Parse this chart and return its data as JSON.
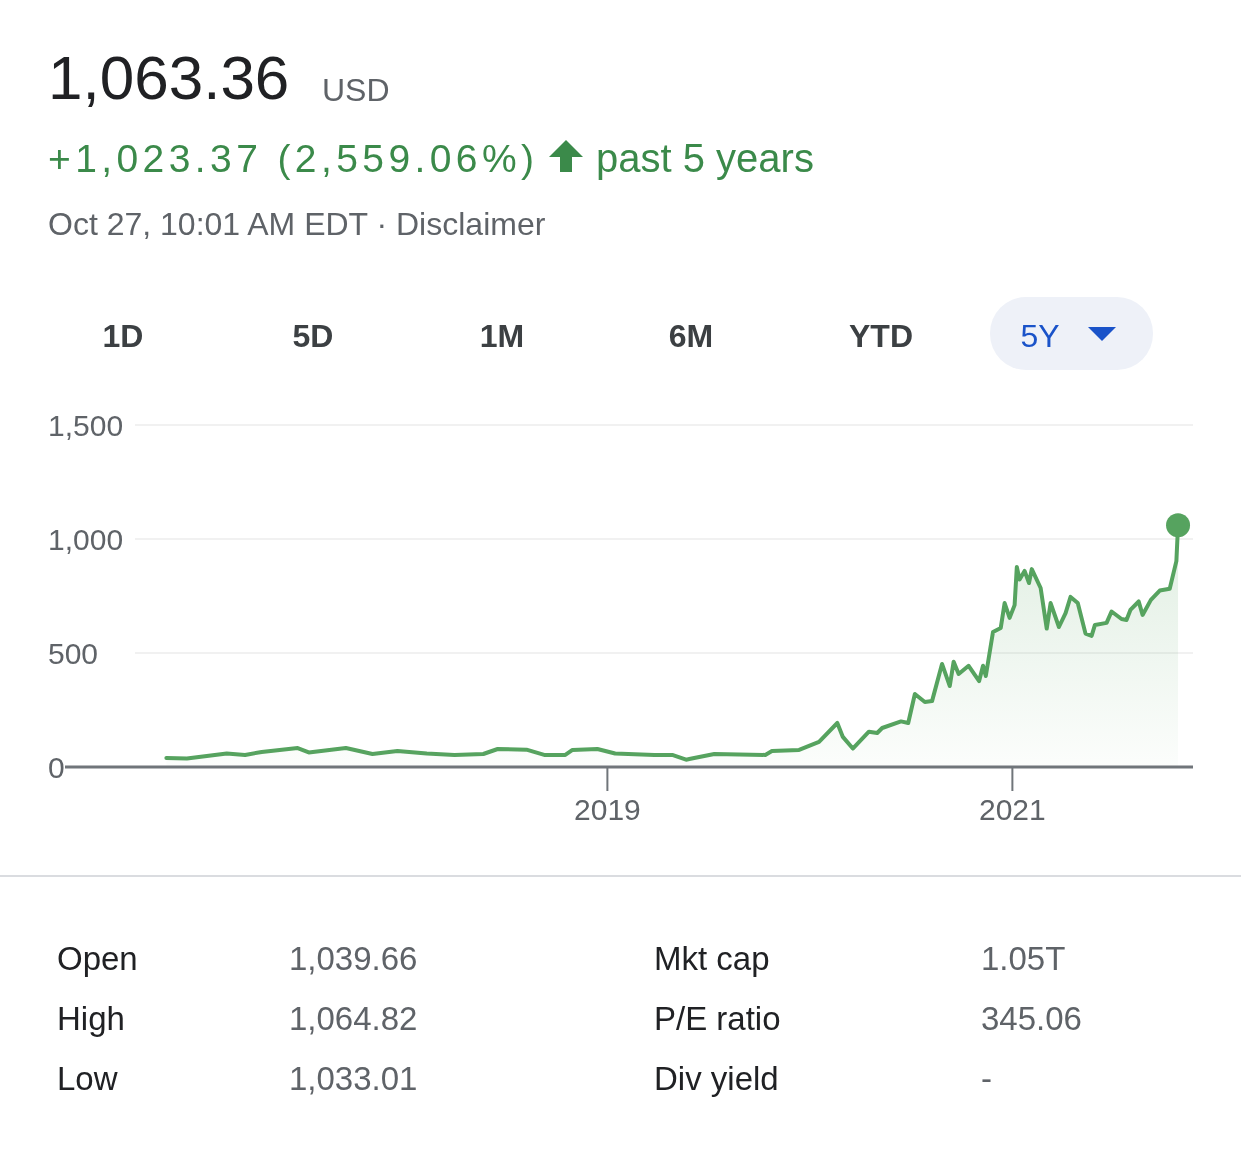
{
  "chart_data": {
    "type": "area",
    "title": "1,063.36",
    "subtitle": "USD",
    "annotations": [
      "+1,023.37 (2,559.06%)",
      "past 5 years",
      "Oct 27, 10:01 AM EDT · Disclaimer",
      "1D",
      "5D",
      "1M",
      "6M",
      "YTD",
      "5Y",
      "Open",
      "1,039.66",
      "High",
      "1,064.82",
      "Low",
      "1,033.01",
      "Mkt cap",
      "1.05T",
      "P/E ratio",
      "345.06",
      "Div yield",
      "-"
    ],
    "xlim": [
      "2016-04-27",
      "2021-11-23"
    ],
    "xticks": [
      {
        "value": "2019-01-01",
        "label": "2019"
      },
      {
        "value": "2021-01-01",
        "label": "2021"
      }
    ],
    "ylim": [
      0,
      1500
    ],
    "yticks": [
      0,
      {
        "value": 500,
        "label": "500"
      },
      {
        "value": 1000,
        "label": "1,000"
      },
      {
        "value": 1500,
        "label": "1,500"
      }
    ],
    "grid": "y",
    "series": [
      {
        "color": "#56a35f",
        "x": [
          "2016-10-27",
          "2016-12-03",
          "2017-02-13",
          "2017-03-18",
          "2017-04-17",
          "2017-06-21",
          "2017-07-11",
          "2017-09-16",
          "2017-11-03",
          "2017-12-18",
          "2018-02-09",
          "2018-03-31",
          "2018-05-22",
          "2018-06-17",
          "2018-08-08",
          "2018-09-09",
          "2018-10-17",
          "2018-10-30",
          "2018-12-14",
          "2019-01-15",
          "2019-03-27",
          "2019-04-28",
          "2019-05-23",
          "2019-05-31",
          "2019-07-13",
          "2019-10-13",
          "2019-10-25",
          "2019-12-13",
          "2020-01-18",
          "2020-02-20",
          "2020-03-01",
          "2020-03-19",
          "2020-04-17",
          "2020-05-02",
          "2020-05-11",
          "2020-06-14",
          "2020-06-27",
          "2020-07-09",
          "2020-07-27",
          "2020-08-09",
          "2020-08-27",
          "2020-09-10",
          "2020-09-17",
          "2020-09-26",
          "2020-10-14",
          "2020-11-02",
          "2020-11-09",
          "2020-11-14",
          "2020-11-27",
          "2020-12-11",
          "2020-12-18",
          "2020-12-27",
          "2021-01-05",
          "2021-01-09",
          "2021-01-14",
          "2021-01-23",
          "2021-01-31",
          "2021-02-05",
          "2021-02-21",
          "2021-03-04",
          "2021-03-11",
          "2021-03-26",
          "2021-04-07",
          "2021-04-16",
          "2021-04-29",
          "2021-05-13",
          "2021-05-24",
          "2021-05-30",
          "2021-06-20",
          "2021-06-29",
          "2021-07-17",
          "2021-07-26",
          "2021-08-02",
          "2021-08-17",
          "2021-08-24",
          "2021-09-08",
          "2021-09-24",
          "2021-10-12",
          "2021-10-24",
          "2021-10-27"
        ],
        "values": [
          40,
          37,
          59,
          53,
          66,
          83,
          64,
          83,
          57,
          70,
          59,
          53,
          57,
          79,
          76,
          53,
          53,
          75,
          79,
          59,
          53,
          53,
          32,
          36,
          57,
          53,
          70,
          75,
          110,
          193,
          132,
          81,
          155,
          149,
          171,
          200,
          193,
          320,
          285,
          289,
          452,
          355,
          462,
          408,
          444,
          377,
          444,
          399,
          592,
          610,
          719,
          654,
          710,
          877,
          822,
          860,
          807,
          868,
          785,
          607,
          719,
          614,
          675,
          746,
          719,
          585,
          575,
          623,
          632,
          682,
          649,
          645,
          689,
          726,
          667,
          733,
          774,
          782,
          903,
          1060
        ]
      },
      {
        "type": "scatter",
        "color": "#56a35f",
        "x": [
          "2021-10-27"
        ],
        "values": [
          1060
        ]
      }
    ]
  }
}
